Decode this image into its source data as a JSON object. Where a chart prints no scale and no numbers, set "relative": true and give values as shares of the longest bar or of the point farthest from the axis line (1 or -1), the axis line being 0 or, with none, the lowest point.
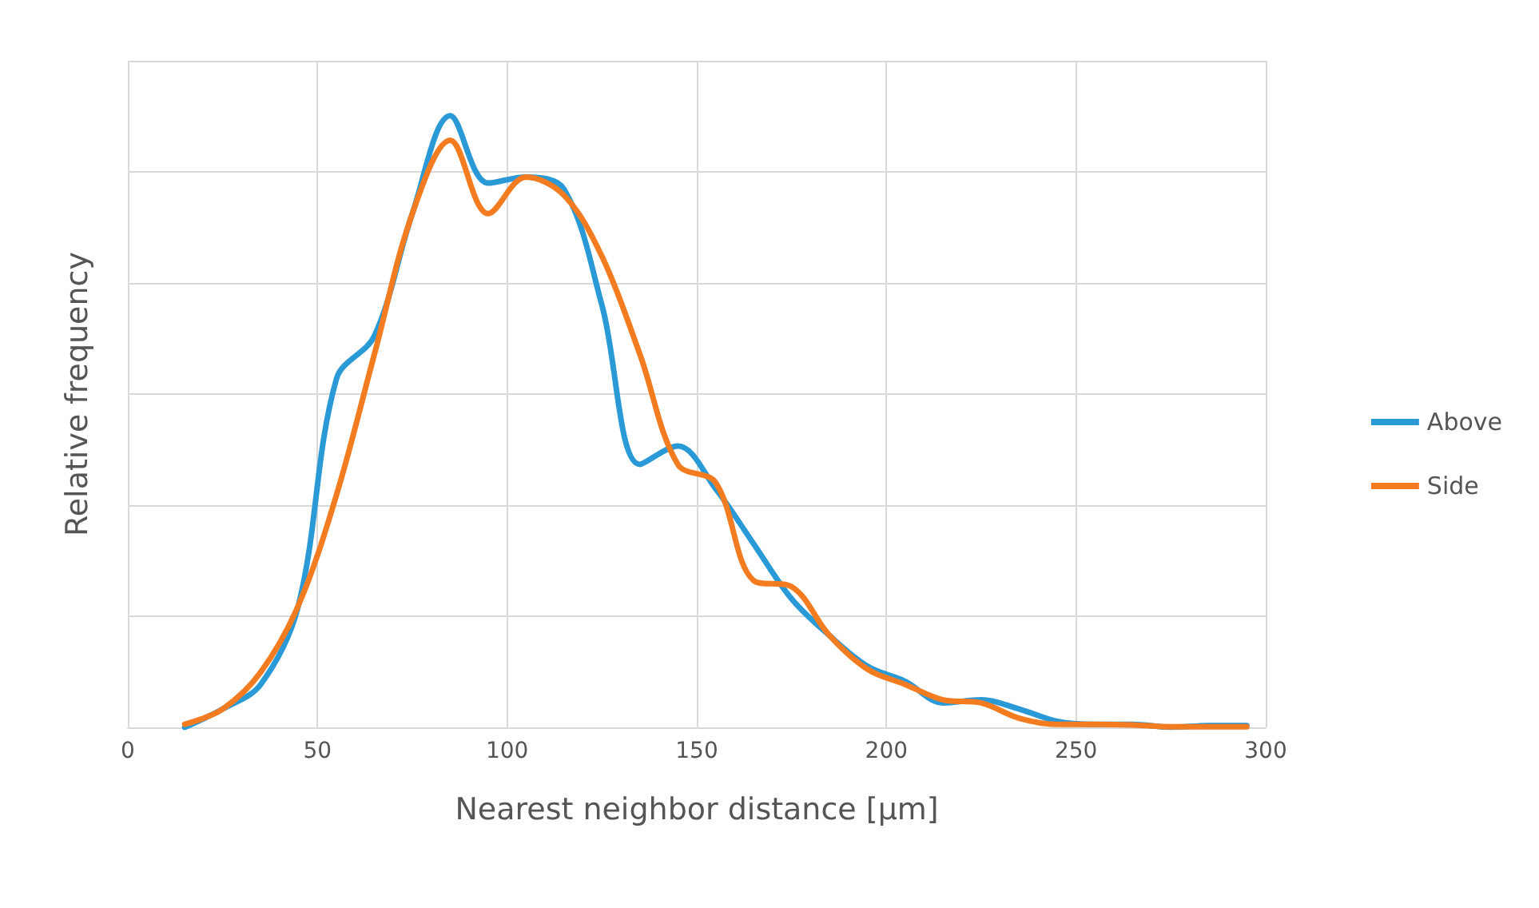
{
  "chart_data": {
    "type": "line",
    "xlabel": "Nearest neighbor distance [µm]",
    "ylabel": "Relative frequency",
    "relative": true,
    "xlim": [
      0,
      300
    ],
    "xticks": [
      0,
      50,
      100,
      150,
      200,
      250,
      300
    ],
    "grid": true,
    "legend": "right",
    "marker": "none",
    "line_style": "solid",
    "x": [
      15,
      25,
      35,
      45,
      55,
      65,
      75,
      85,
      95,
      105,
      115,
      125,
      135,
      145,
      155,
      165,
      175,
      185,
      195,
      205,
      215,
      225,
      235,
      245,
      255,
      265,
      275,
      285,
      295
    ],
    "series": [
      {
        "name": "Above",
        "color": "#2a9ad6",
        "values": [
          0,
          0.03,
          0.07,
          0.2,
          0.57,
          0.64,
          0.84,
          1.0,
          0.89,
          0.9,
          0.88,
          0.69,
          0.43,
          0.46,
          0.39,
          0.3,
          0.21,
          0.15,
          0.1,
          0.075,
          0.04,
          0.045,
          0.03,
          0.01,
          0.005,
          0.005,
          0,
          0.003,
          0.003
        ]
      },
      {
        "name": "Side",
        "color": "#f47c20",
        "values": [
          0.005,
          0.03,
          0.09,
          0.2,
          0.38,
          0.61,
          0.84,
          0.96,
          0.84,
          0.9,
          0.87,
          0.77,
          0.61,
          0.43,
          0.4,
          0.24,
          0.23,
          0.15,
          0.095,
          0.07,
          0.045,
          0.04,
          0.015,
          0.005,
          0.005,
          0.004,
          0.001,
          0.001,
          0.001
        ]
      }
    ]
  }
}
